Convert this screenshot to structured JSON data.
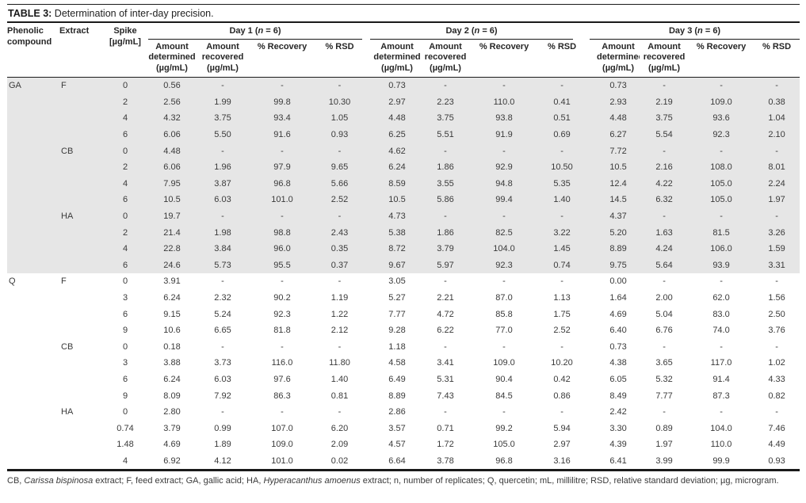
{
  "title": {
    "label": "TABLE 3:",
    "text": " Determination of inter-day precision."
  },
  "colors": {
    "shade": "#e6e6e6",
    "rule": "#1a1a1a",
    "text": "#3a3a3a"
  },
  "columns": {
    "compound": "Phenolic\ncompound",
    "extract": "Extract",
    "spike": "Spike\n[µg/mL]",
    "amount_determined": "Amount\ndetermined\n(µg/mL)",
    "amount_recovered": "Amount\nrecovered\n(µg/mL)",
    "recovery": "% Recovery",
    "rsd": "% RSD"
  },
  "days": [
    {
      "pre": "Day 1 (",
      "n": "n",
      "post": " = 6)"
    },
    {
      "pre": "Day 2 (",
      "n": "n",
      "post": " = 6)"
    },
    {
      "pre": "Day 3 (",
      "n": "n",
      "post": " = 6)"
    }
  ],
  "chart_data": {
    "type": "table",
    "title": "TABLE 3: Determination of inter-day precision."
  },
  "rows": [
    {
      "section": "ga",
      "compound": "GA",
      "extract": "F",
      "spike": "0",
      "d1": [
        "0.56",
        "-",
        "-",
        "-"
      ],
      "d2": [
        "0.73",
        "-",
        "-",
        "-"
      ],
      "d3": [
        "0.73",
        "-",
        "-",
        "-"
      ]
    },
    {
      "section": "ga",
      "compound": "",
      "extract": "",
      "spike": "2",
      "d1": [
        "2.56",
        "1.99",
        "99.8",
        "10.30"
      ],
      "d2": [
        "2.97",
        "2.23",
        "110.0",
        "0.41"
      ],
      "d3": [
        "2.93",
        "2.19",
        "109.0",
        "0.38"
      ]
    },
    {
      "section": "ga",
      "compound": "",
      "extract": "",
      "spike": "4",
      "d1": [
        "4.32",
        "3.75",
        "93.4",
        "1.05"
      ],
      "d2": [
        "4.48",
        "3.75",
        "93.8",
        "0.51"
      ],
      "d3": [
        "4.48",
        "3.75",
        "93.6",
        "1.04"
      ]
    },
    {
      "section": "ga",
      "compound": "",
      "extract": "",
      "spike": "6",
      "d1": [
        "6.06",
        "5.50",
        "91.6",
        "0.93"
      ],
      "d2": [
        "6.25",
        "5.51",
        "91.9",
        "0.69"
      ],
      "d3": [
        "6.27",
        "5.54",
        "92.3",
        "2.10"
      ]
    },
    {
      "section": "ga",
      "compound": "",
      "extract": "CB",
      "spike": "0",
      "d1": [
        "4.48",
        "-",
        "-",
        "-"
      ],
      "d2": [
        "4.62",
        "-",
        "-",
        "-"
      ],
      "d3": [
        "7.72",
        "-",
        "-",
        "-"
      ]
    },
    {
      "section": "ga",
      "compound": "",
      "extract": "",
      "spike": "2",
      "d1": [
        "6.06",
        "1.96",
        "97.9",
        "9.65"
      ],
      "d2": [
        "6.24",
        "1.86",
        "92.9",
        "10.50"
      ],
      "d3": [
        "10.5",
        "2.16",
        "108.0",
        "8.01"
      ]
    },
    {
      "section": "ga",
      "compound": "",
      "extract": "",
      "spike": "4",
      "d1": [
        "7.95",
        "3.87",
        "96.8",
        "5.66"
      ],
      "d2": [
        "8.59",
        "3.55",
        "94.8",
        "5.35"
      ],
      "d3": [
        "12.4",
        "4.22",
        "105.0",
        "2.24"
      ]
    },
    {
      "section": "ga",
      "compound": "",
      "extract": "",
      "spike": "6",
      "d1": [
        "10.5",
        "6.03",
        "101.0",
        "2.52"
      ],
      "d2": [
        "10.5",
        "5.86",
        "99.4",
        "1.40"
      ],
      "d3": [
        "14.5",
        "6.32",
        "105.0",
        "1.97"
      ]
    },
    {
      "section": "ga",
      "compound": "",
      "extract": "HA",
      "spike": "0",
      "d1": [
        "19.7",
        "-",
        "-",
        "-"
      ],
      "d2": [
        "4.73",
        "-",
        "-",
        "-"
      ],
      "d3": [
        "4.37",
        "-",
        "-",
        "-"
      ]
    },
    {
      "section": "ga",
      "compound": "",
      "extract": "",
      "spike": "2",
      "d1": [
        "21.4",
        "1.98",
        "98.8",
        "2.43"
      ],
      "d2": [
        "5.38",
        "1.86",
        "82.5",
        "3.22"
      ],
      "d3": [
        "5.20",
        "1.63",
        "81.5",
        "3.26"
      ]
    },
    {
      "section": "ga",
      "compound": "",
      "extract": "",
      "spike": "4",
      "d1": [
        "22.8",
        "3.84",
        "96.0",
        "0.35"
      ],
      "d2": [
        "8.72",
        "3.79",
        "104.0",
        "1.45"
      ],
      "d3": [
        "8.89",
        "4.24",
        "106.0",
        "1.59"
      ]
    },
    {
      "section": "ga",
      "compound": "",
      "extract": "",
      "spike": "6",
      "d1": [
        "24.6",
        "5.73",
        "95.5",
        "0.37"
      ],
      "d2": [
        "9.67",
        "5.97",
        "92.3",
        "0.74"
      ],
      "d3": [
        "9.75",
        "5.64",
        "93.9",
        "3.31"
      ]
    },
    {
      "section": "q",
      "compound": "Q",
      "extract": "F",
      "spike": "0",
      "d1": [
        "3.91",
        "-",
        "-",
        "-"
      ],
      "d2": [
        "3.05",
        "-",
        "-",
        "-"
      ],
      "d3": [
        "0.00",
        "-",
        "-",
        "-"
      ]
    },
    {
      "section": "q",
      "compound": "",
      "extract": "",
      "spike": "3",
      "d1": [
        "6.24",
        "2.32",
        "90.2",
        "1.19"
      ],
      "d2": [
        "5.27",
        "2.21",
        "87.0",
        "1.13"
      ],
      "d3": [
        "1.64",
        "2.00",
        "62.0",
        "1.56"
      ]
    },
    {
      "section": "q",
      "compound": "",
      "extract": "",
      "spike": "6",
      "d1": [
        "9.15",
        "5.24",
        "92.3",
        "1.22"
      ],
      "d2": [
        "7.77",
        "4.72",
        "85.8",
        "1.75"
      ],
      "d3": [
        "4.69",
        "5.04",
        "83.0",
        "2.50"
      ]
    },
    {
      "section": "q",
      "compound": "",
      "extract": "",
      "spike": "9",
      "d1": [
        "10.6",
        "6.65",
        "81.8",
        "2.12"
      ],
      "d2": [
        "9.28",
        "6.22",
        "77.0",
        "2.52"
      ],
      "d3": [
        "6.40",
        "6.76",
        "74.0",
        "3.76"
      ]
    },
    {
      "section": "q",
      "compound": "",
      "extract": "CB",
      "spike": "0",
      "d1": [
        "0.18",
        "-",
        "-",
        "-"
      ],
      "d2": [
        "1.18",
        "-",
        "-",
        "-"
      ],
      "d3": [
        "0.73",
        "-",
        "-",
        "-"
      ]
    },
    {
      "section": "q",
      "compound": "",
      "extract": "",
      "spike": "3",
      "d1": [
        "3.88",
        "3.73",
        "116.0",
        "11.80"
      ],
      "d2": [
        "4.58",
        "3.41",
        "109.0",
        "10.20"
      ],
      "d3": [
        "4.38",
        "3.65",
        "117.0",
        "1.02"
      ]
    },
    {
      "section": "q",
      "compound": "",
      "extract": "",
      "spike": "6",
      "d1": [
        "6.24",
        "6.03",
        "97.6",
        "1.40"
      ],
      "d2": [
        "6.49",
        "5.31",
        "90.4",
        "0.42"
      ],
      "d3": [
        "6.05",
        "5.32",
        "91.4",
        "4.33"
      ]
    },
    {
      "section": "q",
      "compound": "",
      "extract": "",
      "spike": "9",
      "d1": [
        "8.09",
        "7.92",
        "86.3",
        "0.81"
      ],
      "d2": [
        "8.89",
        "7.43",
        "84.5",
        "0.86"
      ],
      "d3": [
        "8.49",
        "7.77",
        "87.3",
        "0.82"
      ]
    },
    {
      "section": "q",
      "compound": "",
      "extract": "HA",
      "spike": "0",
      "d1": [
        "2.80",
        "-",
        "-",
        "-"
      ],
      "d2": [
        "2.86",
        "-",
        "-",
        "-"
      ],
      "d3": [
        "2.42",
        "-",
        "-",
        "-"
      ]
    },
    {
      "section": "q",
      "compound": "",
      "extract": "",
      "spike": "0.74",
      "d1": [
        "3.79",
        "0.99",
        "107.0",
        "6.20"
      ],
      "d2": [
        "3.57",
        "0.71",
        "99.2",
        "5.94"
      ],
      "d3": [
        "3.30",
        "0.89",
        "104.0",
        "7.46"
      ]
    },
    {
      "section": "q",
      "compound": "",
      "extract": "",
      "spike": "1.48",
      "d1": [
        "4.69",
        "1.89",
        "109.0",
        "2.09"
      ],
      "d2": [
        "4.57",
        "1.72",
        "105.0",
        "2.97"
      ],
      "d3": [
        "4.39",
        "1.97",
        "110.0",
        "4.49"
      ]
    },
    {
      "section": "q",
      "compound": "",
      "extract": "",
      "spike": "4",
      "d1": [
        "6.92",
        "4.12",
        "101.0",
        "0.02"
      ],
      "d2": [
        "6.64",
        "3.78",
        "96.8",
        "3.16"
      ],
      "d3": [
        "6.41",
        "3.99",
        "99.9",
        "0.93"
      ]
    }
  ],
  "footnote": {
    "parts": [
      {
        "text": "CB, "
      },
      {
        "text": "Carissa bispinosa",
        "italic": true
      },
      {
        "text": " extract; F, feed extract; GA, gallic acid; HA, "
      },
      {
        "text": "Hyperacanthus amoenus",
        "italic": true
      },
      {
        "text": " extract; n, number of replicates; Q, quercetin; mL, millilitre; RSD, relative standard deviation; µg, microgram."
      }
    ]
  }
}
